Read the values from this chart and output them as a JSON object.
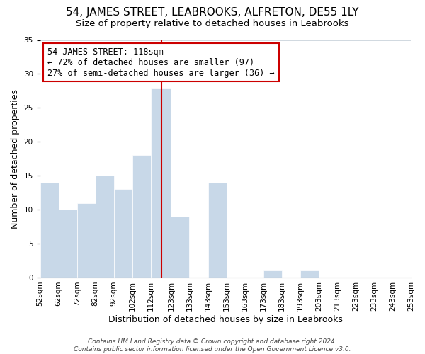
{
  "title": "54, JAMES STREET, LEABROOKS, ALFRETON, DE55 1LY",
  "subtitle": "Size of property relative to detached houses in Leabrooks",
  "xlabel": "Distribution of detached houses by size in Leabrooks",
  "ylabel": "Number of detached properties",
  "footer_line1": "Contains HM Land Registry data © Crown copyright and database right 2024.",
  "footer_line2": "Contains public sector information licensed under the Open Government Licence v3.0.",
  "annotation_title": "54 JAMES STREET: 118sqm",
  "annotation_line1": "← 72% of detached houses are smaller (97)",
  "annotation_line2": "27% of semi-detached houses are larger (36) →",
  "property_value": 118,
  "bar_color": "#c8d8e8",
  "redline_color": "#cc0000",
  "annotation_box_edge": "#cc0000",
  "annotation_box_face": "#ffffff",
  "bins": [
    52,
    62,
    72,
    82,
    92,
    102,
    112,
    123,
    133,
    143,
    153,
    163,
    173,
    183,
    193,
    203,
    213,
    223,
    233,
    243,
    253
  ],
  "bin_labels": [
    "52sqm",
    "62sqm",
    "72sqm",
    "82sqm",
    "92sqm",
    "102sqm",
    "112sqm",
    "123sqm",
    "133sqm",
    "143sqm",
    "153sqm",
    "163sqm",
    "173sqm",
    "183sqm",
    "193sqm",
    "203sqm",
    "213sqm",
    "223sqm",
    "233sqm",
    "243sqm",
    "253sqm"
  ],
  "counts": [
    14,
    10,
    11,
    15,
    13,
    18,
    28,
    9,
    0,
    14,
    0,
    0,
    1,
    0,
    1,
    0,
    0,
    0,
    0,
    0
  ],
  "ylim": [
    0,
    35
  ],
  "yticks": [
    0,
    5,
    10,
    15,
    20,
    25,
    30,
    35
  ],
  "title_fontsize": 11,
  "subtitle_fontsize": 9.5,
  "axis_label_fontsize": 9,
  "tick_label_fontsize": 7.5,
  "annotation_fontsize": 8.5,
  "footer_fontsize": 6.5,
  "background_color": "#ffffff",
  "grid_color": "#d0d8e0"
}
